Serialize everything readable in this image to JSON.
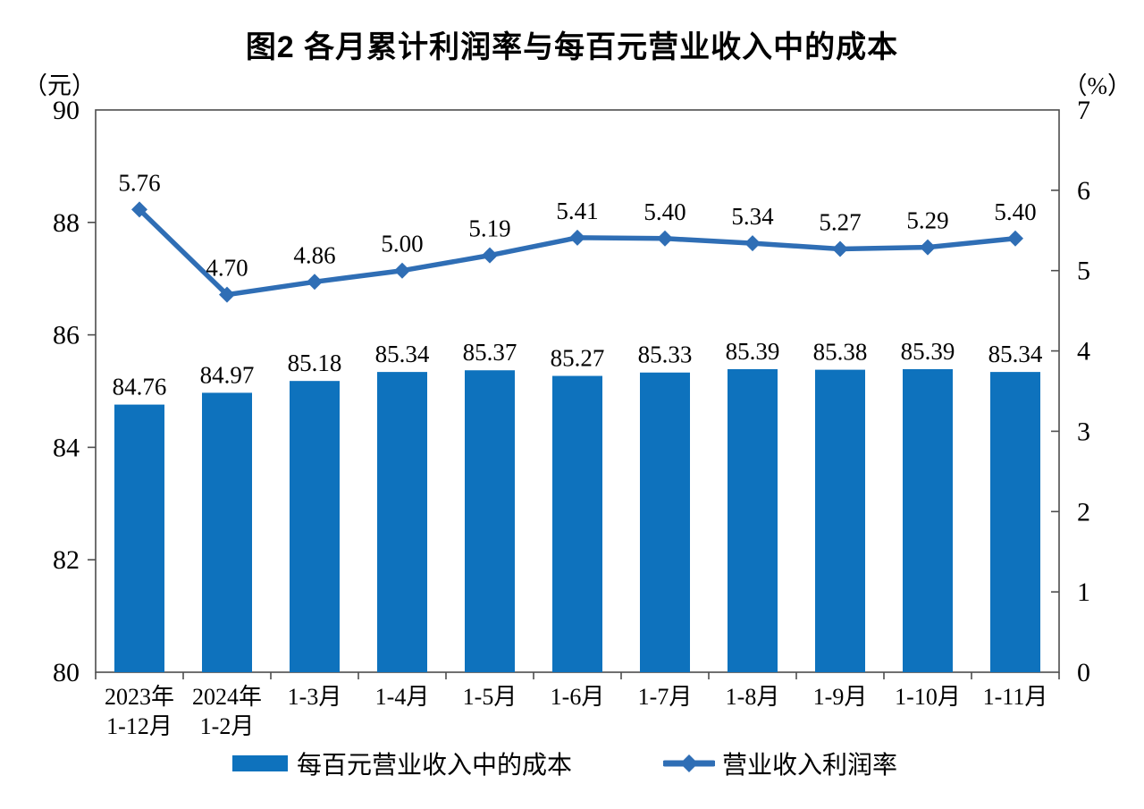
{
  "title": "图2  各月累计利润率与每百元营业收入中的成本",
  "left_axis_unit": "（元）",
  "right_axis_unit": "（%）",
  "legend": {
    "bar_label": "每百元营业收入中的成本",
    "line_label": "营业收入利润率"
  },
  "colors": {
    "bar": "#0E72BD",
    "line": "#2F6EB5",
    "marker": "#2F6EB5",
    "axis": "#4d4d4d",
    "text": "#000000"
  },
  "chart_data": {
    "type": "combo-bar-line",
    "title": "图2  各月累计利润率与每百元营业收入中的成本",
    "categories": [
      "2023年\n1-12月",
      "2024年\n1-2月",
      "1-3月",
      "1-4月",
      "1-5月",
      "1-6月",
      "1-7月",
      "1-8月",
      "1-9月",
      "1-10月",
      "1-11月"
    ],
    "series": [
      {
        "name": "每百元营业收入中的成本",
        "type": "bar",
        "axis": "left",
        "values": [
          84.76,
          84.97,
          85.18,
          85.34,
          85.37,
          85.27,
          85.33,
          85.39,
          85.38,
          85.39,
          85.34
        ]
      },
      {
        "name": "营业收入利润率",
        "type": "line",
        "axis": "right",
        "values": [
          5.76,
          4.7,
          4.86,
          5.0,
          5.19,
          5.41,
          5.4,
          5.34,
          5.27,
          5.29,
          5.4
        ]
      }
    ],
    "left_axis": {
      "label": "（元）",
      "min": 80,
      "max": 90,
      "ticks": [
        80,
        82,
        84,
        86,
        88,
        90
      ]
    },
    "right_axis": {
      "label": "（%）",
      "min": 0,
      "max": 7,
      "ticks": [
        0,
        1,
        2,
        3,
        4,
        5,
        6,
        7
      ]
    },
    "value_label_decimals": 2,
    "grid": false,
    "legend_position": "bottom"
  }
}
